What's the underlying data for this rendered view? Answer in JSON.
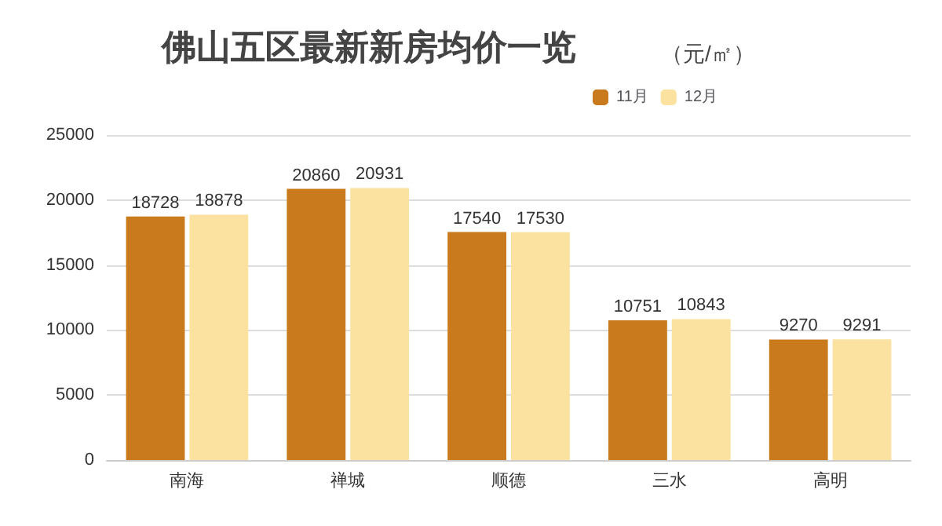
{
  "chart_data": {
    "type": "bar",
    "title": "佛山五区最新新房均价一览",
    "subtitle": "（元/㎡）",
    "categories": [
      "南海",
      "禅城",
      "顺德",
      "三水",
      "高明"
    ],
    "series": [
      {
        "name": "11月",
        "color": "#c97a1c",
        "values": [
          18728,
          20860,
          17540,
          10751,
          9270
        ]
      },
      {
        "name": "12月",
        "color": "#fbe2a0",
        "values": [
          18878,
          20931,
          17530,
          10843,
          9291
        ]
      }
    ],
    "ylim": [
      0,
      25000
    ],
    "yticks": [
      0,
      5000,
      10000,
      15000,
      20000,
      25000
    ],
    "grid": "y",
    "legend": "top right",
    "data_labels": true
  }
}
